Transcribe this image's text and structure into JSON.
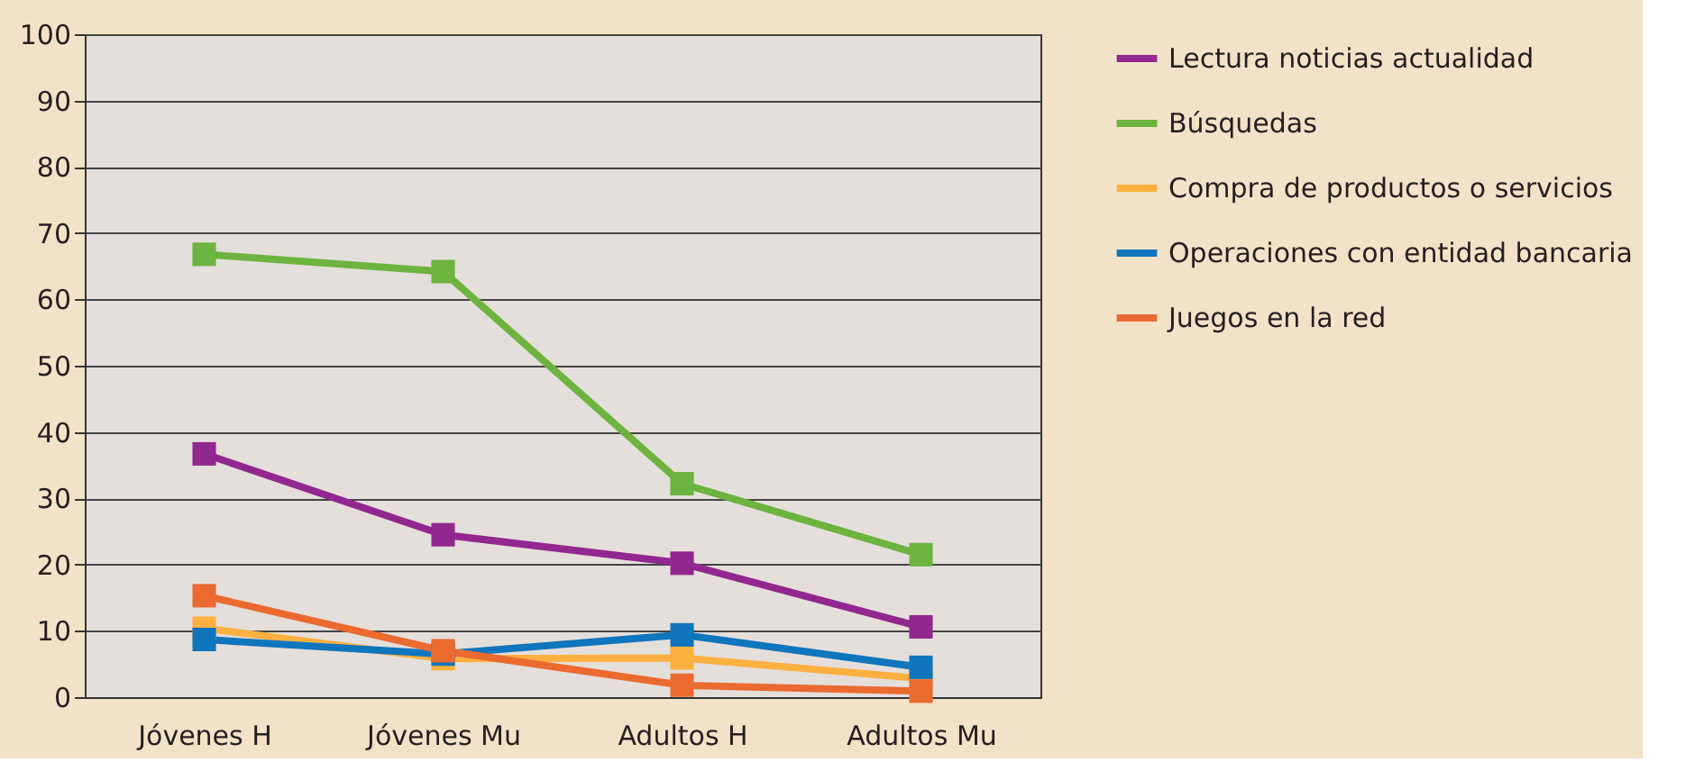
{
  "chart_data": {
    "type": "line",
    "categories": [
      "Jóvenes H",
      "Jóvenes Mu",
      "Adultos H",
      "Adultos Mu"
    ],
    "series": [
      {
        "name": "Lectura noticias actualidad",
        "color": "#92278f",
        "values": [
          36.7,
          24.5,
          20.2,
          10.6
        ]
      },
      {
        "name": "Búsquedas",
        "color": "#6db33f",
        "values": [
          66.8,
          64.2,
          32.2,
          21.5
        ]
      },
      {
        "name": "Compra de productos o servicios",
        "color": "#fbb040",
        "values": [
          10.4,
          5.8,
          5.9,
          2.8
        ]
      },
      {
        "name": "Operaciones con entidad bancaria",
        "color": "#0f75bc",
        "values": [
          8.7,
          6.5,
          9.4,
          4.5
        ]
      },
      {
        "name": "Juegos en la red",
        "color": "#ea6a30",
        "values": [
          15.3,
          7.0,
          1.8,
          0.9
        ]
      }
    ],
    "ylim": [
      0,
      100
    ],
    "yticks": [
      0,
      10,
      20,
      30,
      40,
      50,
      60,
      70,
      80,
      90,
      100
    ],
    "grid": "y",
    "legend": "right",
    "marker": "square",
    "line_style": "solid"
  }
}
